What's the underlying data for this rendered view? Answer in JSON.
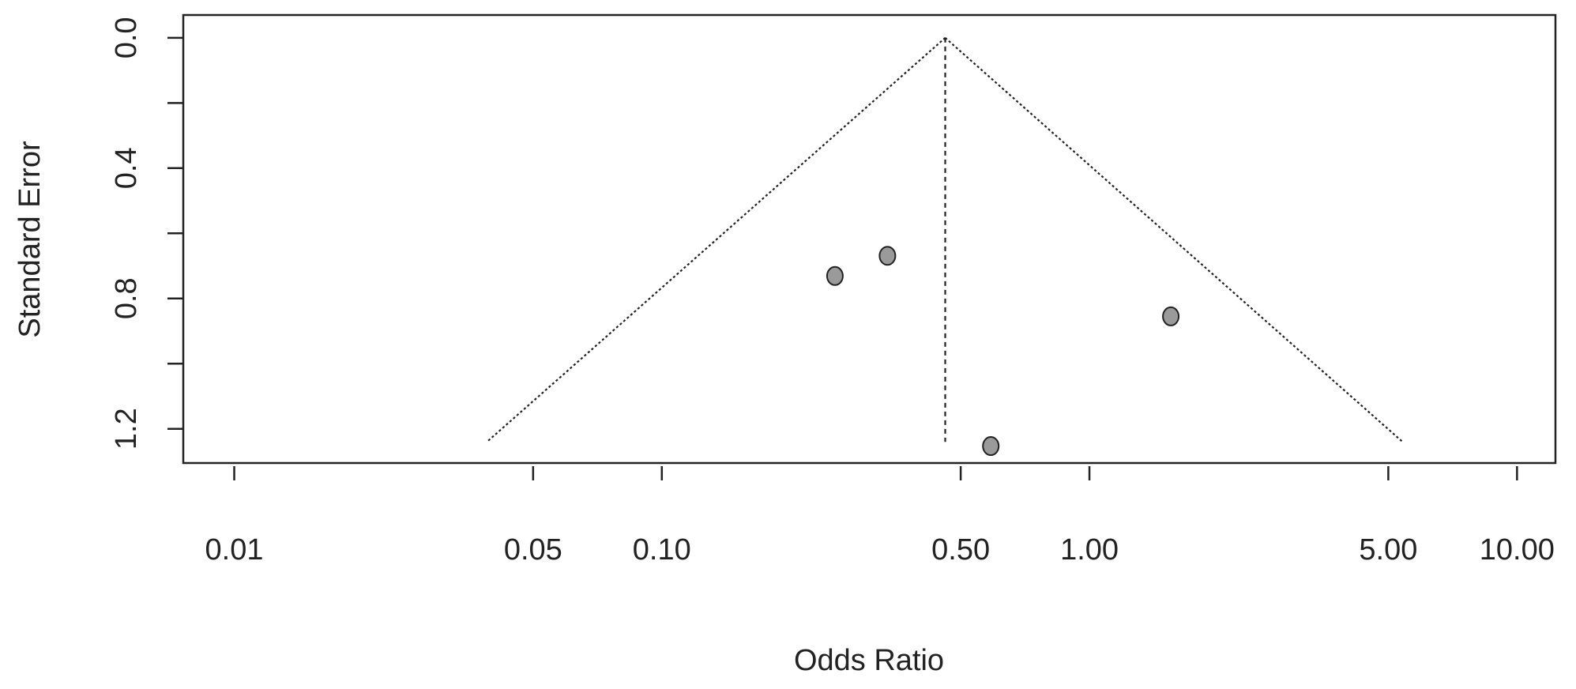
{
  "chart_data": {
    "type": "funnel",
    "x_label": "Odds Ratio",
    "y_label": "Standard Error",
    "x_log": true,
    "xlim": [
      0.0076,
      12.3
    ],
    "xticks": [
      0.01,
      0.05,
      {
        "value": 0.1,
        "label": "0.10"
      },
      {
        "value": 0.5,
        "label": "0.50"
      },
      {
        "value": 1,
        "label": "1.00"
      },
      {
        "value": 5,
        "label": "5.00"
      },
      {
        "value": 10,
        "label": "10.00"
      }
    ],
    "ylim": [
      -0.07,
      1.305
    ],
    "y_reversed": true,
    "yticks": [
      {
        "value": 0,
        "label": "0.0"
      },
      0.4,
      0.8,
      1.2
    ],
    "yminor_ticks": [
      0.2,
      0.6,
      1.0
    ],
    "funnel": {
      "center": 0.46,
      "left_base": 0.039,
      "right_base": 5.4,
      "se_max": 1.24
    },
    "series": [
      {
        "color": "#9a9a9a",
        "x": [
          0.254,
          0.337,
          1.55,
          0.588
        ],
        "values": [
          0.731,
          0.669,
          0.855,
          1.253
        ]
      }
    ]
  }
}
